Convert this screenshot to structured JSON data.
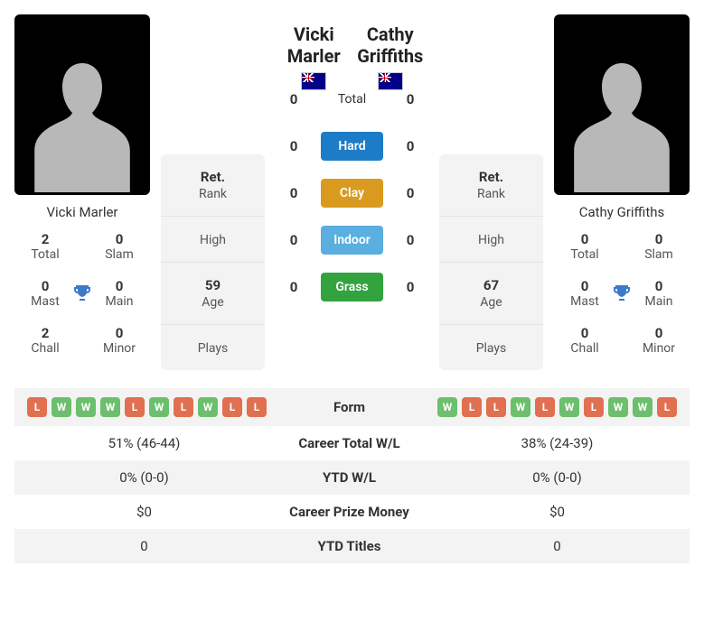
{
  "colors": {
    "win": "#6cbf6c",
    "loss": "#e07050",
    "hard": "#1d7cc7",
    "clay": "#d99a1f",
    "indoor": "#5aaee0",
    "grass": "#33a33f",
    "trophy": "#3d7ac8",
    "row_alt": "#f3f3f3",
    "silhouette": "#b8b8b8"
  },
  "h2h": {
    "labels": {
      "total": "Total",
      "hard": "Hard",
      "clay": "Clay",
      "indoor": "Indoor",
      "grass": "Grass"
    },
    "p1": {
      "total": "0",
      "hard": "0",
      "clay": "0",
      "indoor": "0",
      "grass": "0"
    },
    "p2": {
      "total": "0",
      "hard": "0",
      "clay": "0",
      "indoor": "0",
      "grass": "0"
    }
  },
  "rank_labels": {
    "rank_top": "Ret.",
    "rank_bottom": "Rank",
    "high": "High",
    "age": "Age",
    "plays": "Plays"
  },
  "title_labels": {
    "total": "Total",
    "slam": "Slam",
    "mast": "Mast",
    "main": "Main",
    "chall": "Chall",
    "minor": "Minor"
  },
  "p1": {
    "name_top": "Vicki Marler",
    "name_under": "Vicki Marler",
    "flag": "AU",
    "age": "59",
    "titles": {
      "total": "2",
      "slam": "0",
      "mast": "0",
      "main": "0",
      "chall": "2",
      "minor": "0"
    },
    "form": [
      "L",
      "W",
      "W",
      "W",
      "L",
      "W",
      "L",
      "W",
      "L",
      "L"
    ]
  },
  "p2": {
    "name_top": "Cathy Griffiths",
    "name_under": "Cathy Griffiths",
    "flag": "AU",
    "age": "67",
    "titles": {
      "total": "0",
      "slam": "0",
      "mast": "0",
      "main": "0",
      "chall": "0",
      "minor": "0"
    },
    "form": [
      "W",
      "L",
      "L",
      "W",
      "L",
      "W",
      "L",
      "W",
      "W",
      "L"
    ]
  },
  "compare": {
    "rows": [
      {
        "label": "Form",
        "p1": "",
        "p2": ""
      },
      {
        "label": "Career Total W/L",
        "p1": "51% (46-44)",
        "p2": "38% (24-39)"
      },
      {
        "label": "YTD W/L",
        "p1": "0% (0-0)",
        "p2": "0% (0-0)"
      },
      {
        "label": "Career Prize Money",
        "p1": "$0",
        "p2": "$0"
      },
      {
        "label": "YTD Titles",
        "p1": "0",
        "p2": "0"
      }
    ]
  }
}
